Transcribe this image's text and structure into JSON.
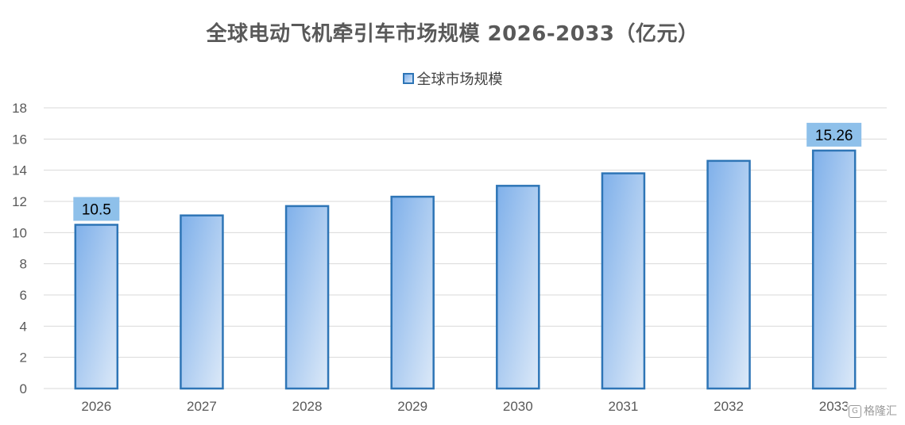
{
  "chart_data": {
    "type": "bar",
    "title": "全球电动飞机牵引车市场规模 2026-2033（亿元）",
    "legend": "全球市场规模",
    "legend_position": "top",
    "grid": true,
    "categories": [
      "2026",
      "2027",
      "2028",
      "2029",
      "2030",
      "2031",
      "2032",
      "2033"
    ],
    "series": [
      {
        "name": "全球市场规模",
        "values": [
          10.5,
          11.1,
          11.7,
          12.3,
          13.0,
          13.8,
          14.6,
          15.26
        ]
      }
    ],
    "data_labels": [
      {
        "index": 0,
        "text": "10.5"
      },
      {
        "index": 7,
        "text": "15.26"
      }
    ],
    "y_ticks": [
      "0",
      "2",
      "4",
      "6",
      "8",
      "10",
      "12",
      "14",
      "16",
      "18"
    ],
    "ylim": [
      0,
      18
    ],
    "xlabel": "",
    "ylabel": "",
    "colors": {
      "bar_fill_start": "#7fb0ea",
      "bar_fill_end": "#dce9f8",
      "bar_stroke": "#2e75b6",
      "label_bg": "#8ec0ea",
      "grid": "#d9d9d9",
      "axis_text": "#595959",
      "title": "#595959"
    }
  },
  "watermark": {
    "text": "格隆汇",
    "icon": "g-icon"
  }
}
